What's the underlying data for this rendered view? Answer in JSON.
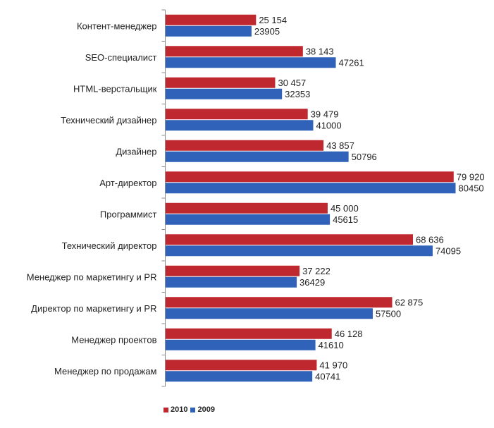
{
  "chart_data": {
    "type": "bar",
    "orientation": "horizontal",
    "categories": [
      "Контент-менеджер",
      "SEO-специалист",
      "HTML-верстальщик",
      "Технический дизайнер",
      "Дизайнер",
      "Арт-директор",
      "Программист",
      "Технический директор",
      "Менеджер по маркетингу и PR",
      "Директор по маркетингу и PR",
      "Менеджер проектов",
      "Менеджер по продажам"
    ],
    "series": [
      {
        "name": "2010",
        "color": "#c0282f",
        "values": [
          25154,
          38143,
          30457,
          39479,
          43857,
          79920,
          45000,
          68636,
          37222,
          62875,
          46128,
          41970
        ],
        "labels": [
          "25 154",
          "38 143",
          "30 457",
          "39 479",
          "43 857",
          "79 920",
          "45 000",
          "68 636",
          "37 222",
          "62 875",
          "46 128",
          "41 970"
        ]
      },
      {
        "name": "2009",
        "color": "#2f62b8",
        "values": [
          23905,
          47261,
          32353,
          41000,
          50796,
          80450,
          45615,
          74095,
          36429,
          57500,
          41610,
          40741
        ],
        "labels": [
          "23905",
          "47261",
          "32353",
          "41000",
          "50796",
          "80450",
          "45615",
          "74095",
          "36429",
          "57500",
          "41610",
          "40741"
        ]
      }
    ],
    "xlim": [
      0,
      100000
    ],
    "grid": false,
    "legend_position": "bottom"
  }
}
